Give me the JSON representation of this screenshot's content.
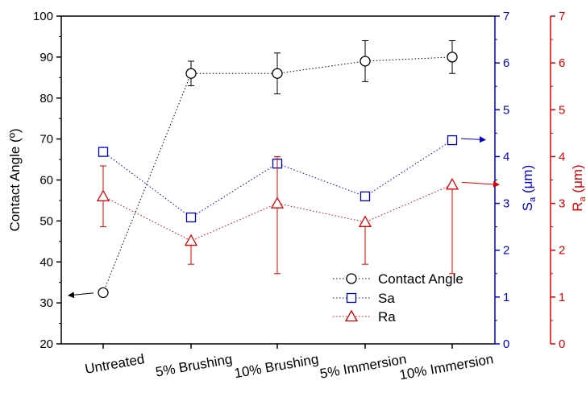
{
  "chart_data": {
    "type": "line",
    "categories": [
      "Untreated",
      "5% Brushing",
      "10% Brushing",
      "5% Immersion",
      "10% Immersion"
    ],
    "axes": {
      "left": {
        "label": "Contact Angle (º)",
        "ylim": [
          20,
          100
        ],
        "ticks": [
          "20",
          "30",
          "40",
          "50",
          "60",
          "70",
          "80",
          "90",
          "100"
        ],
        "color": "#000000"
      },
      "right_sa": {
        "label_main": "S",
        "label_sub": "a",
        "label_unit": " (μm)",
        "ylim": [
          0,
          7
        ],
        "ticks": [
          "0",
          "1",
          "2",
          "3",
          "4",
          "5",
          "6",
          "7"
        ],
        "color": "#0000cc"
      },
      "right_ra": {
        "label_main": "R",
        "label_sub": "a",
        "label_unit": " (μm)",
        "ylim": [
          0,
          7
        ],
        "ticks": [
          "0",
          "1",
          "2",
          "3",
          "4",
          "5",
          "6",
          "7"
        ],
        "color": "#dd0000"
      }
    },
    "series": [
      {
        "name": "Contact Angle",
        "axis": "left",
        "marker": "circle",
        "color": "#000000",
        "values": [
          32.5,
          86,
          86,
          89,
          90
        ],
        "err_low": [
          null,
          83,
          81,
          84,
          86
        ],
        "err_high": [
          null,
          89,
          91,
          94,
          94
        ]
      },
      {
        "name": "Sa",
        "axis": "right_sa",
        "marker": "square",
        "color": "#0000cc",
        "values": [
          4.1,
          2.7,
          3.85,
          3.15,
          4.35
        ]
      },
      {
        "name": "Ra",
        "axis": "right_ra",
        "marker": "triangle",
        "color": "#dd0000",
        "values": [
          3.15,
          2.2,
          3.0,
          2.6,
          3.4
        ],
        "err_low": [
          2.5,
          1.7,
          1.5,
          1.7,
          1.5
        ],
        "err_high": [
          3.8,
          null,
          4.0,
          null,
          null
        ]
      }
    ],
    "legend": {
      "placement": "bottom-right",
      "entries": [
        "Contact Angle",
        "Sa",
        "Ra"
      ]
    },
    "grid": false
  }
}
